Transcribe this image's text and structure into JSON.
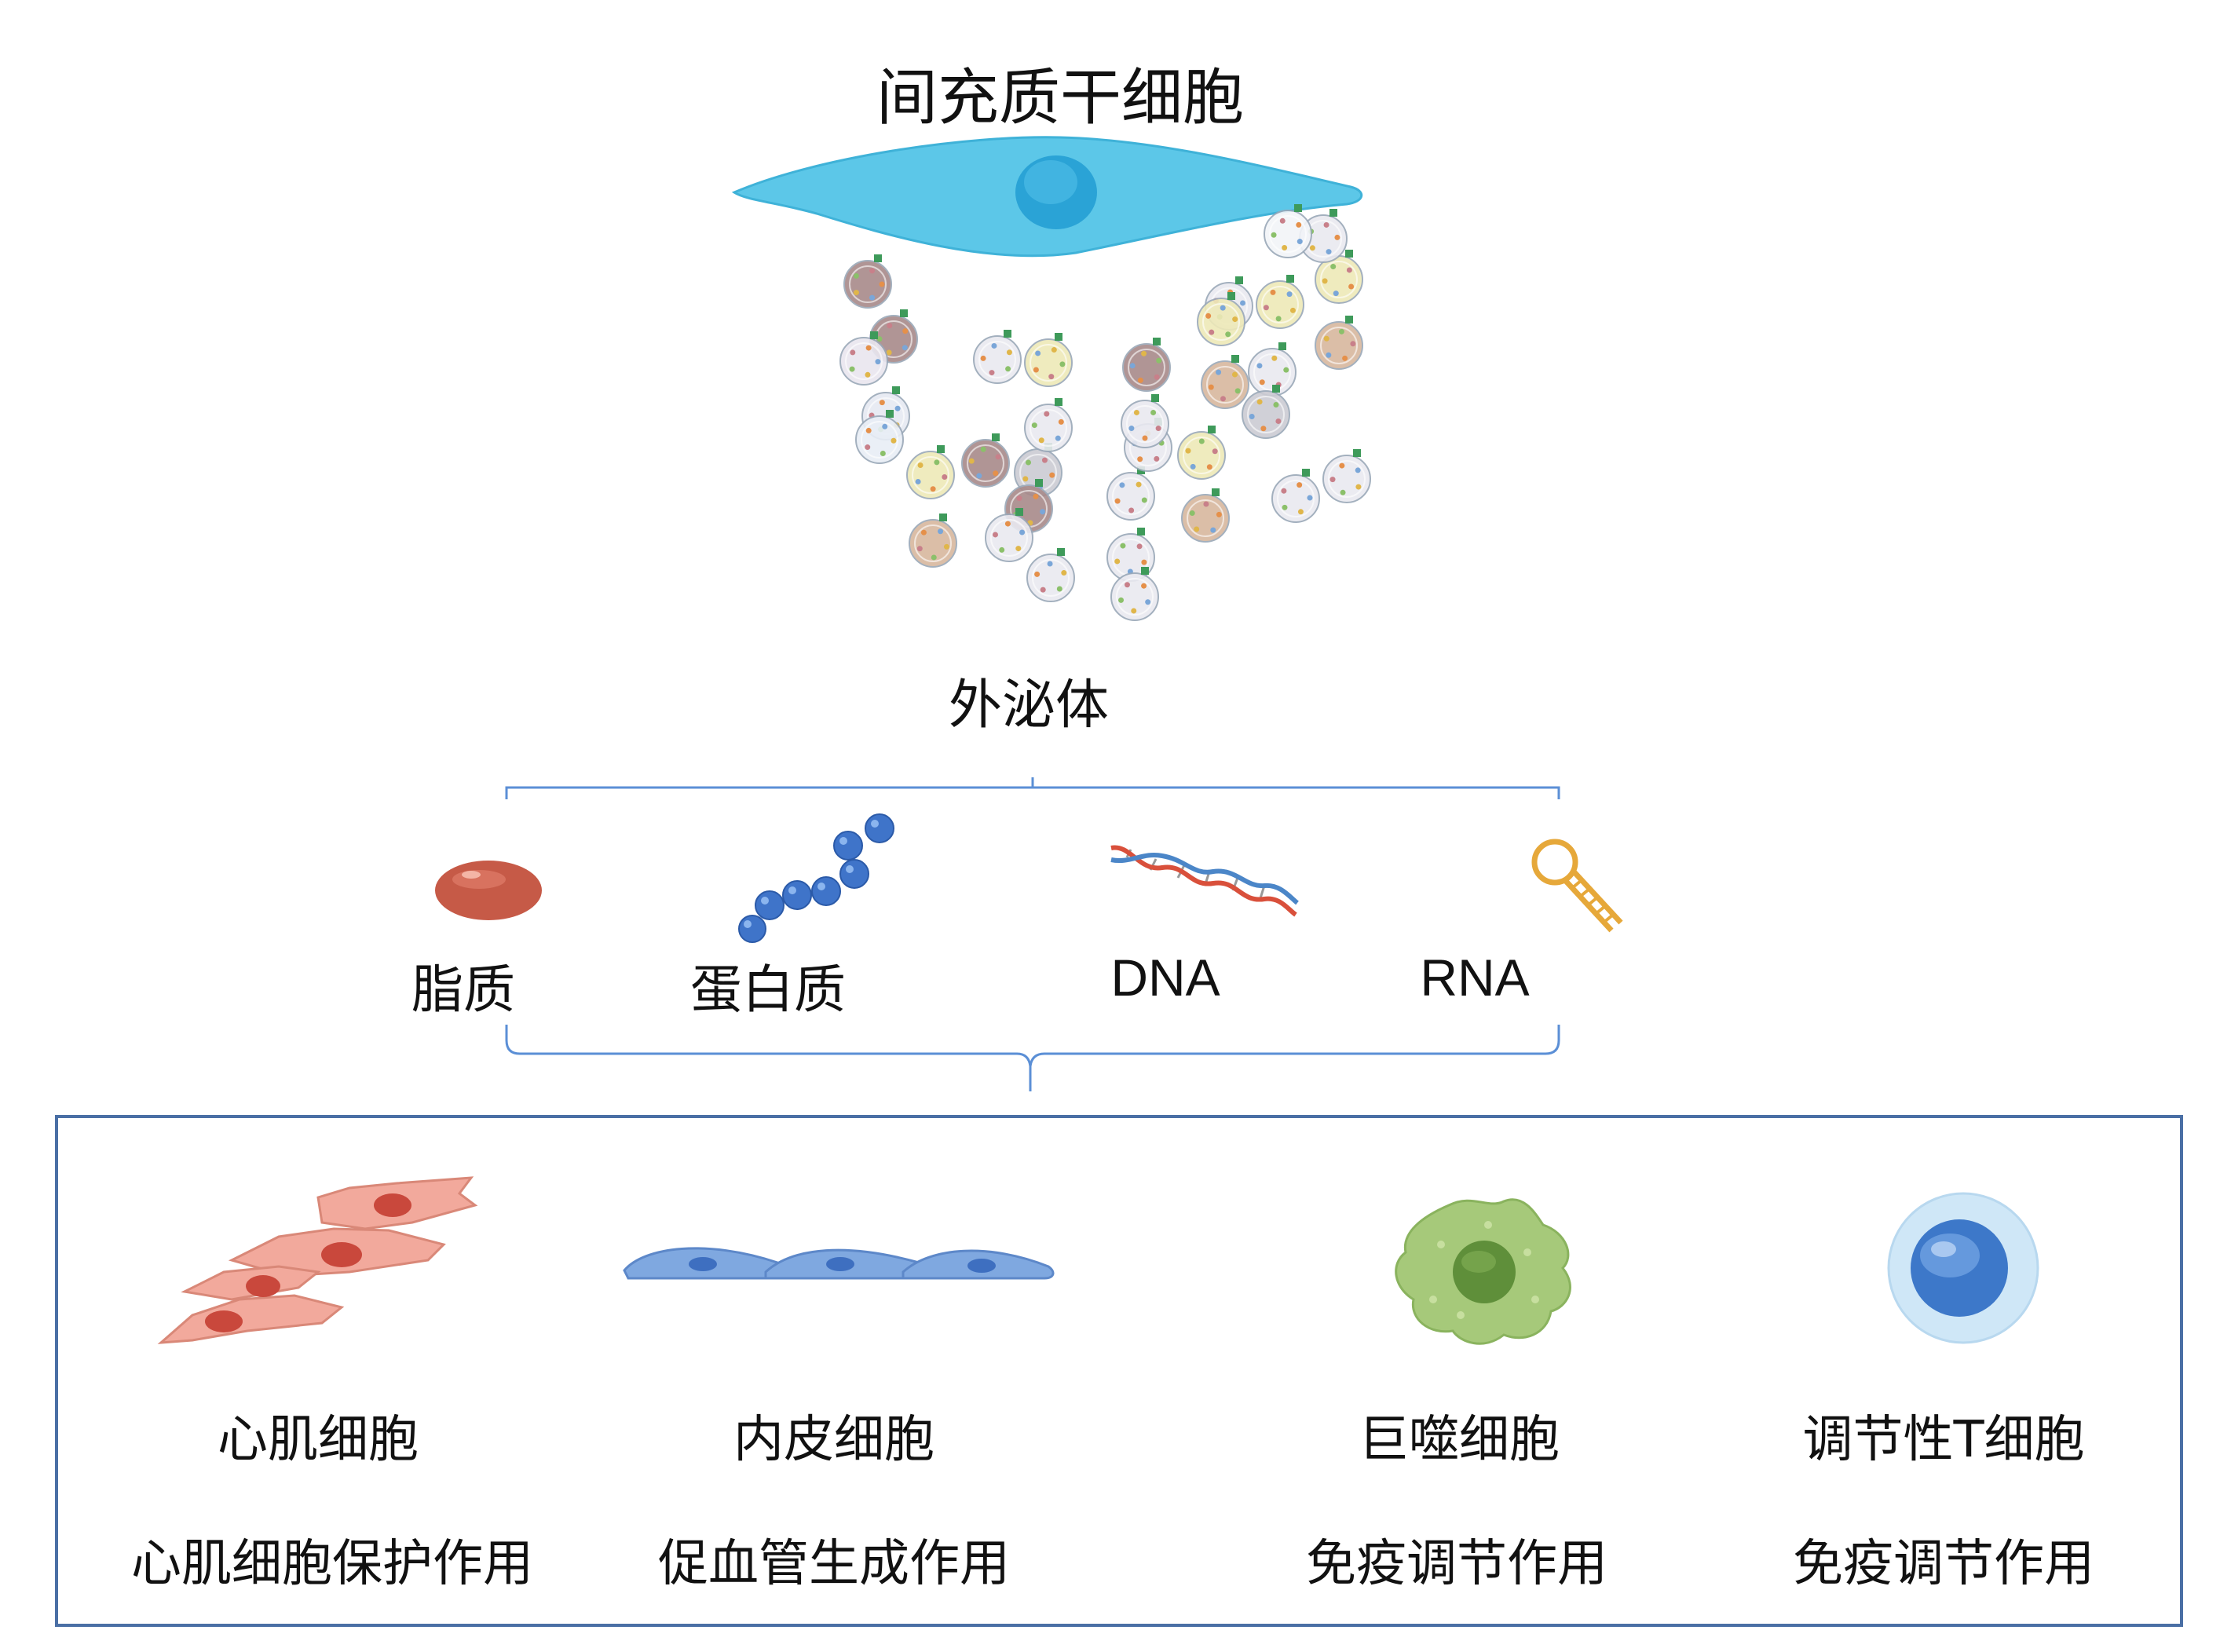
{
  "header": {
    "title": "间充质干细胞"
  },
  "exosome": {
    "label": "外泌体"
  },
  "cargo": {
    "items": [
      {
        "label": "脂质",
        "icon": "lipid-droplet-icon"
      },
      {
        "label": "蛋白质",
        "icon": "protein-chain-icon"
      },
      {
        "label": "DNA",
        "icon": "dna-helix-icon"
      },
      {
        "label": "RNA",
        "icon": "rna-hairpin-icon"
      }
    ]
  },
  "targets": {
    "items": [
      {
        "cell": "心肌细胞",
        "effect": "心肌细胞保护作用",
        "icon": "cardiomyocyte-icon"
      },
      {
        "cell": "内皮细胞",
        "effect": "促血管生成作用",
        "icon": "endothelial-cell-icon"
      },
      {
        "cell": "巨噬细胞",
        "effect": "免疫调节作用",
        "icon": "macrophage-icon"
      },
      {
        "cell": "调节性T细胞",
        "effect": "免疫调节作用",
        "icon": "treg-cell-icon"
      }
    ]
  },
  "colors": {
    "bracket": "#5b8fd6",
    "box_border": "#4a6fa5",
    "msc": "#5cc7e8",
    "msc_nucleus": "#2aa3d6"
  }
}
